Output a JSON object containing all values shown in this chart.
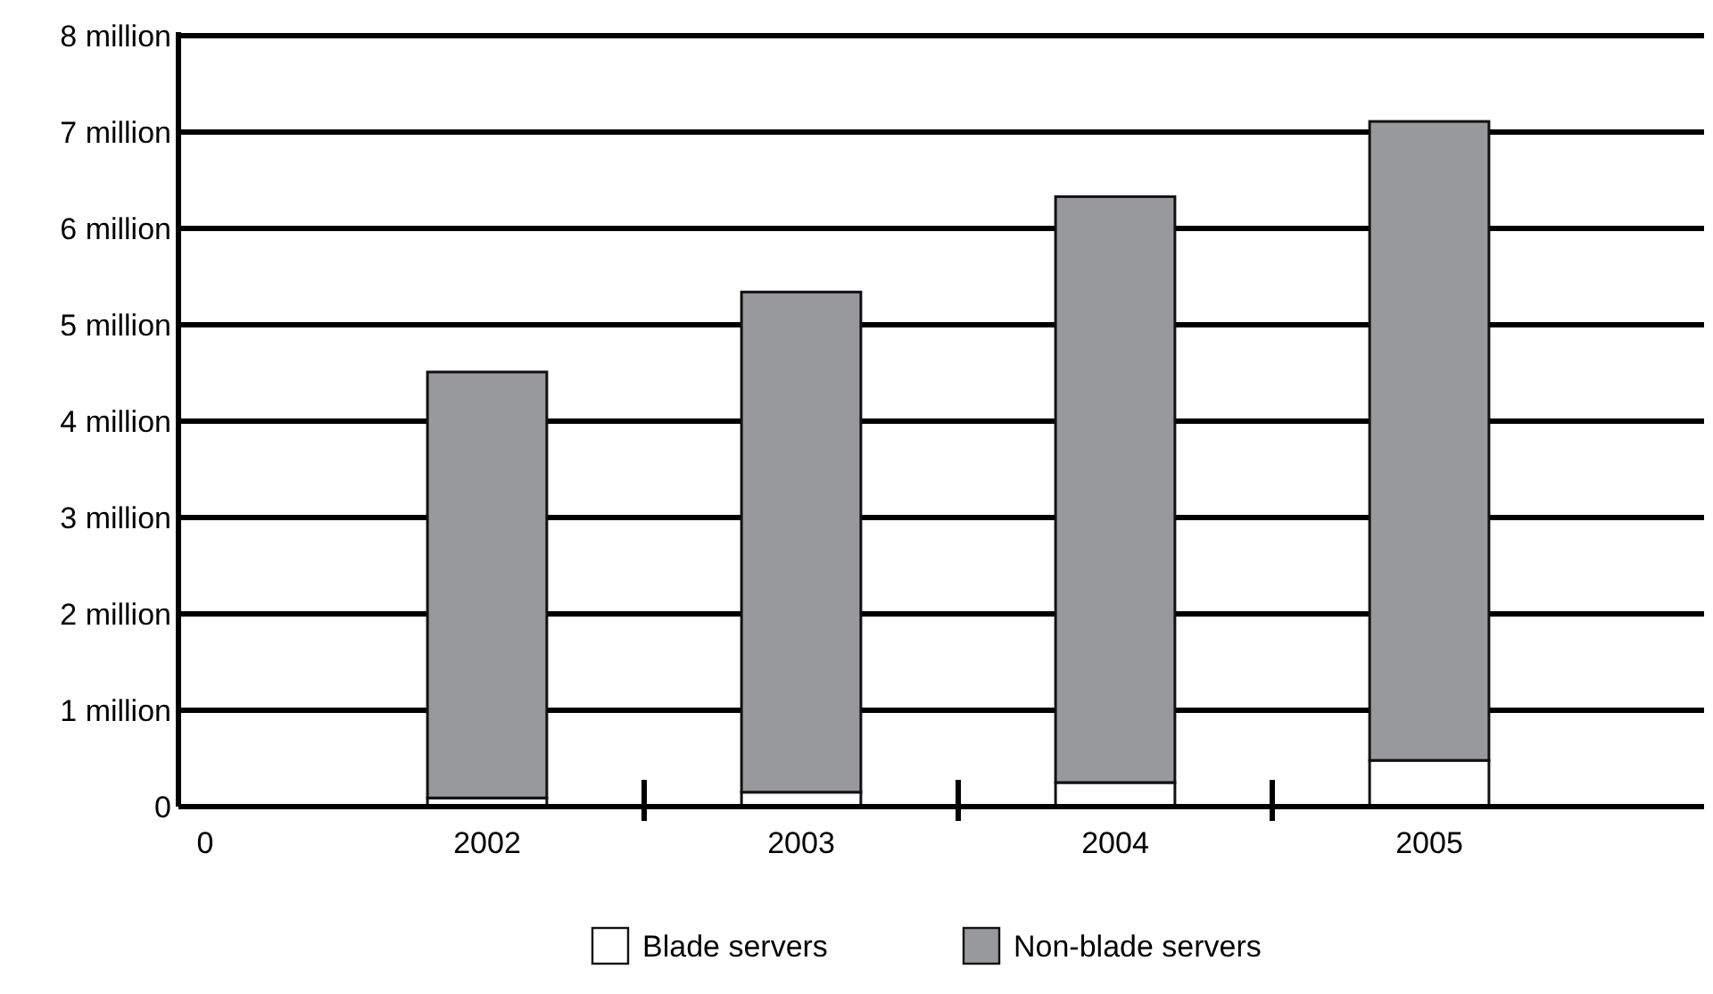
{
  "chart_data": {
    "type": "bar",
    "stacked": true,
    "categories": [
      "0",
      "2002",
      "2003",
      "2004",
      "2005"
    ],
    "series": [
      {
        "name": "Blade servers",
        "color": "#ffffff",
        "values": [
          null,
          0.09,
          0.15,
          0.25,
          0.48
        ]
      },
      {
        "name": "Non-blade servers",
        "color": "#98999d",
        "values": [
          null,
          4.42,
          5.19,
          6.08,
          6.63
        ]
      }
    ],
    "ylim": [
      0,
      8
    ],
    "yticks": [
      0,
      {
        "value": 1,
        "label": "1 million"
      },
      {
        "value": 2,
        "label": "2 million"
      },
      {
        "value": 3,
        "label": "3 million"
      },
      {
        "value": 4,
        "label": "4 million"
      },
      {
        "value": 5,
        "label": "5 million"
      },
      {
        "value": 6,
        "label": "6 million"
      },
      {
        "value": 7,
        "label": "7 million"
      },
      {
        "value": 8,
        "label": "8 million"
      }
    ],
    "grid": "y",
    "legend": "bottom"
  }
}
